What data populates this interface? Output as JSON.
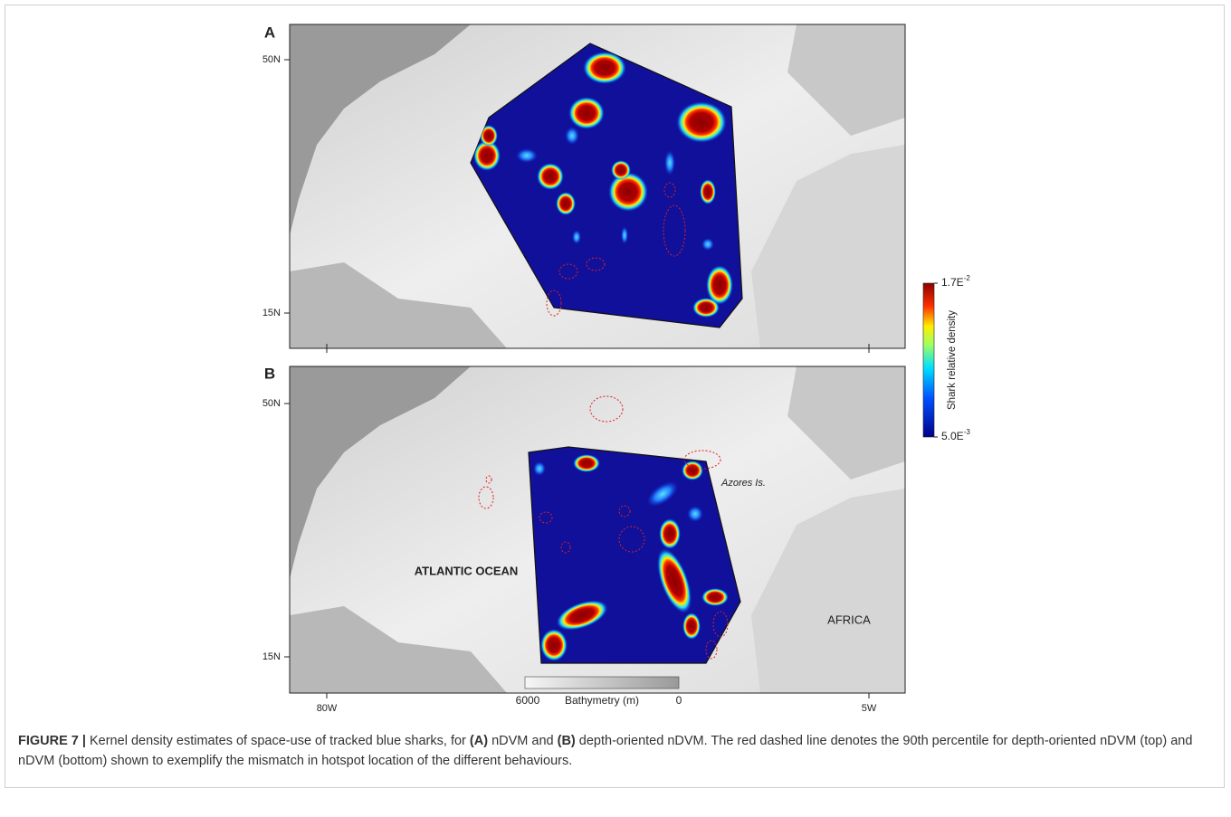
{
  "panels": [
    {
      "label": "A",
      "lat_labels": [
        "50N",
        "15N"
      ]
    },
    {
      "label": "B",
      "lat_labels": [
        "50N",
        "15N"
      ],
      "annotations": [
        "Azores Is.",
        "ATLANTIC OCEAN",
        "AFRICA"
      ]
    }
  ],
  "lon_labels": [
    "80W",
    "5W"
  ],
  "colorbar": {
    "max": {
      "mantissa": "1.7E",
      "exponent": "-2"
    },
    "min": {
      "mantissa": "5.0E",
      "exponent": "-3"
    },
    "label": "Shark relative density"
  },
  "bathymetry": {
    "min": "6000",
    "label": "Bathymetry (m)",
    "max": "0"
  },
  "caption": {
    "figure": "FIGURE 7 |",
    "parts": [
      " Kernel density estimates of space-use of tracked blue sharks, for ",
      "(A)",
      " nDVM and ",
      "(B)",
      " depth-oriented nDVM. The red dashed line denotes the 90th percentile for depth-oriented nDVM (top) and nDVM (bottom) shown to exemplify the mismatch in hotspot location of the different behaviours."
    ]
  }
}
